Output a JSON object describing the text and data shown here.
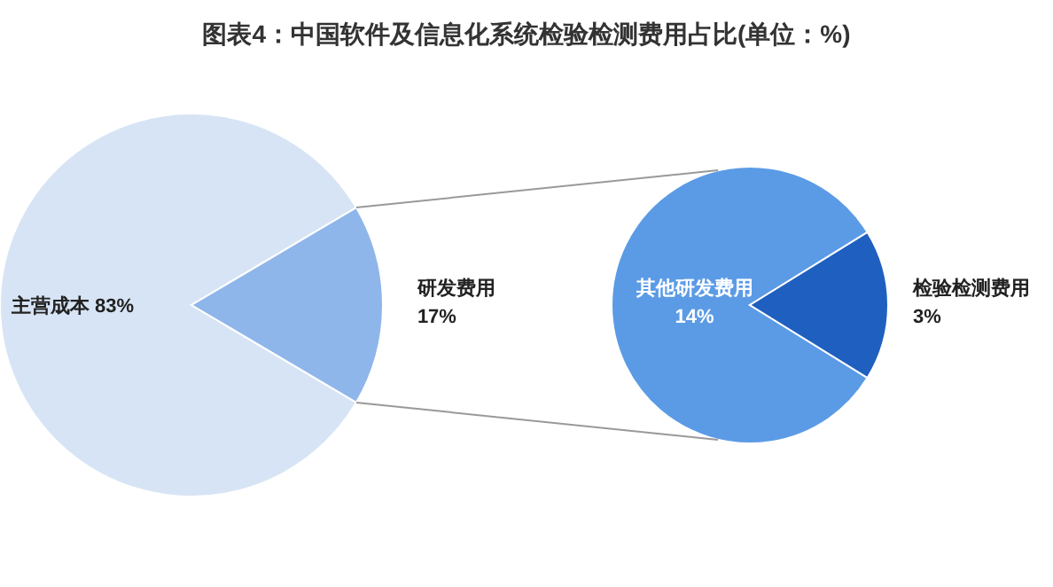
{
  "chart_data": [
    {
      "type": "pie",
      "title": "图表4：中国软件及信息化系统检验检测费用占比(单位：%)",
      "categories": [
        "主营成本",
        "研发费用"
      ],
      "values": [
        83,
        17
      ],
      "colors": [
        "#d7e4f5",
        "#8fb6ea"
      ],
      "value_labels": [
        "83%",
        "17%"
      ]
    },
    {
      "type": "pie",
      "categories": [
        "其他研发费用",
        "检验检测费用"
      ],
      "values": [
        14,
        3
      ],
      "colors": [
        "#5b9be6",
        "#1f5fbf"
      ],
      "value_labels": [
        "14%",
        "3%"
      ]
    }
  ]
}
